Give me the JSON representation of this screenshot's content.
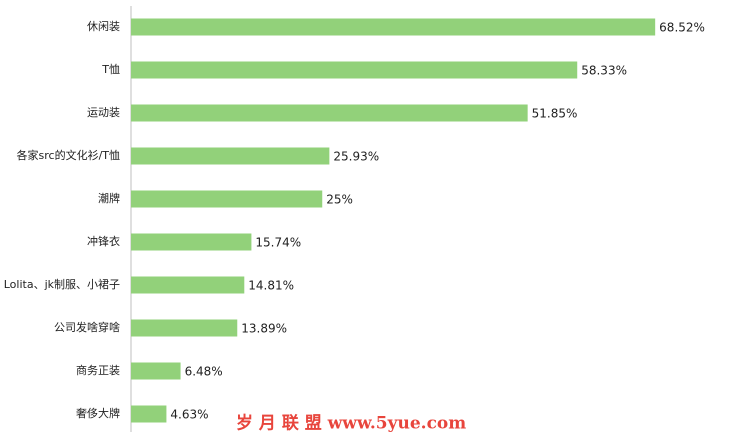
{
  "chart_data": {
    "type": "bar",
    "orientation": "horizontal",
    "categories": [
      "休闲装",
      "T恤",
      "运动装",
      "各家src的文化衫/T恤",
      "潮牌",
      "冲锋衣",
      "Lolita、jk制服、小裙子",
      "公司发啥穿啥",
      "商务正装",
      "奢侈大牌"
    ],
    "values": [
      68.52,
      58.33,
      51.85,
      25.93,
      25,
      15.74,
      14.81,
      13.89,
      6.48,
      4.63
    ],
    "value_labels": [
      "68.52%",
      "58.33%",
      "51.85%",
      "25.93%",
      "25%",
      "15.74%",
      "14.81%",
      "13.89%",
      "6.48%",
      "4.63%"
    ],
    "color": "#92d17a",
    "watermark": "岁 月 联 盟  www.5yue.com"
  }
}
